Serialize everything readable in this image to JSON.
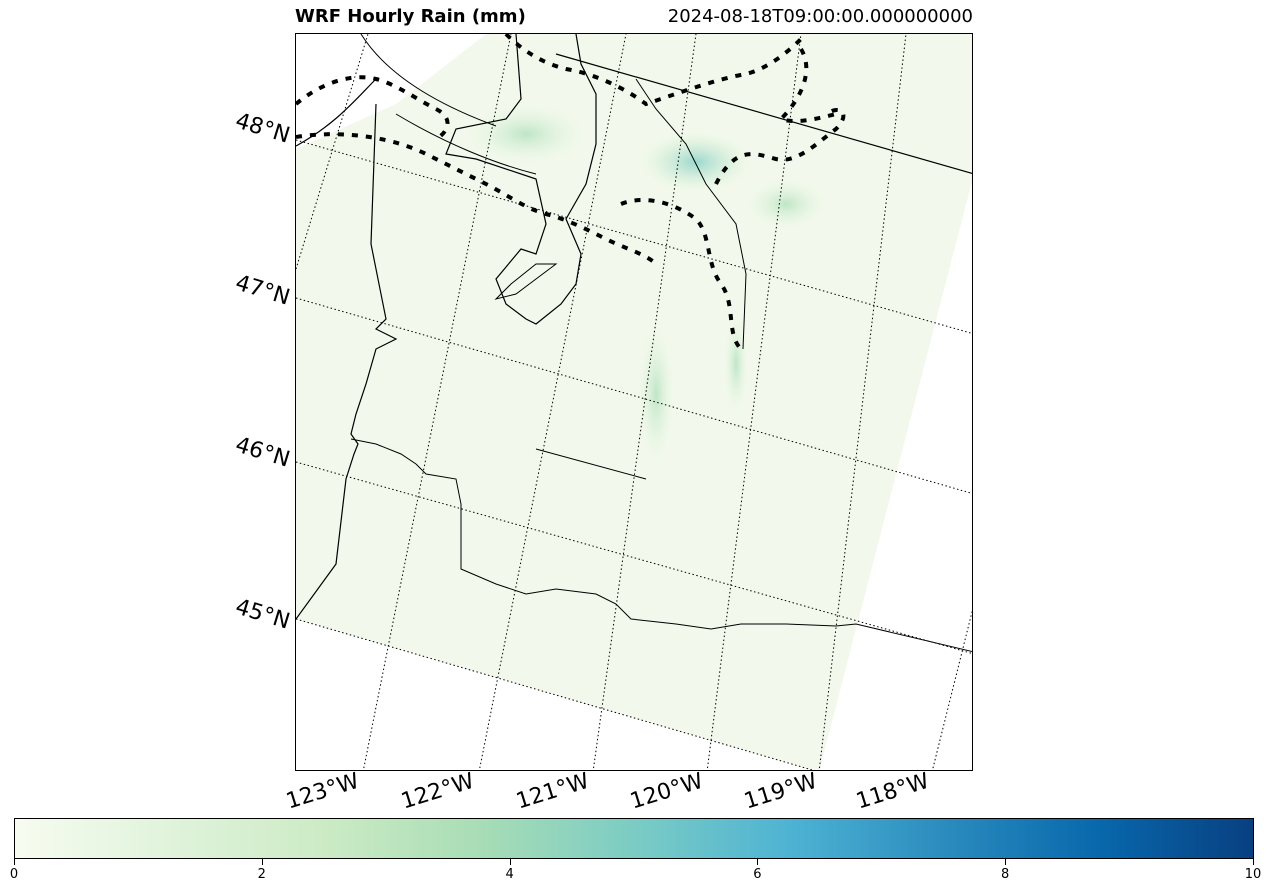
{
  "title": "WRF Hourly Rain (mm)",
  "timestamp": "2024-08-18T09:00:00.000000000",
  "map": {
    "projection": "lambert-conformal",
    "gridlines": "dotted",
    "coastlines": true,
    "state_borders": true
  },
  "lat_labels": [
    "48°N",
    "47°N",
    "46°N",
    "45°N"
  ],
  "lon_labels": [
    "123°W",
    "122°W",
    "121°W",
    "120°W",
    "119°W",
    "118°W"
  ],
  "colorbar": {
    "colormap": "GnBu",
    "min": 0,
    "max": 10,
    "ticks": [
      "0",
      "2",
      "4",
      "6",
      "8",
      "10"
    ],
    "colors": [
      "#f7fcf0",
      "#e0f3db",
      "#ccebc5",
      "#a8ddb5",
      "#7bccc4",
      "#4eb3d3",
      "#2b8cbe",
      "#0868ac",
      "#084081"
    ]
  },
  "chart_data": {
    "type": "heatmap",
    "title": "WRF Hourly Rain (mm)",
    "subtitle": "2024-08-18T09:00:00.000000000",
    "units": "mm",
    "vmin": 0,
    "vmax": 10
  }
}
